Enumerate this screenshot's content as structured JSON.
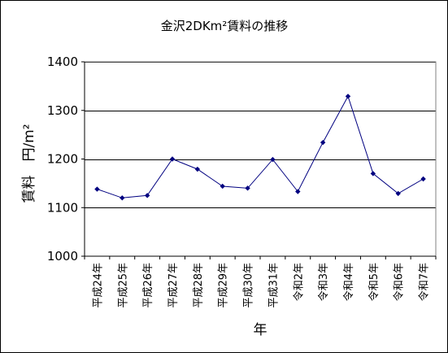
{
  "chart_data": {
    "type": "line",
    "title": "金沢2DKm²賃料の推移",
    "xlabel": "年",
    "ylabel": "賃料　円/m²",
    "categories": [
      "平成24年",
      "平成25年",
      "平成26年",
      "平成27年",
      "平成28年",
      "平成29年",
      "平成30年",
      "平成31年",
      "令和2年",
      "令和3年",
      "令和4年",
      "令和5年",
      "令和6年",
      "令和7年"
    ],
    "series": [
      {
        "values": [
          1138,
          1120,
          1125,
          1200,
          1179,
          1144,
          1140,
          1199,
          1133,
          1234,
          1329,
          1170,
          1129,
          1159
        ]
      }
    ],
    "ylim": [
      1000,
      1400
    ],
    "yticks": [
      1000,
      1100,
      1200,
      1300,
      1400
    ],
    "grid": true,
    "legend": "none",
    "colors": {
      "line": "#000080",
      "marker": "#000080",
      "grid": "#000000",
      "axis": "#000000"
    }
  }
}
